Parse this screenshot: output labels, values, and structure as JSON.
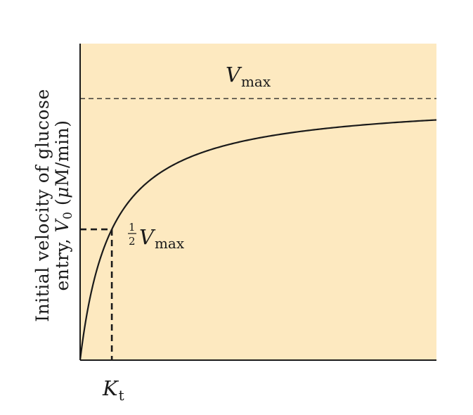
{
  "chart_data": {
    "type": "line",
    "title": "",
    "ylabel_line1": "Initial velocity of glucose",
    "ylabel_line2_prefix": "entry, ",
    "ylabel_line2_var": "V",
    "ylabel_line2_sub": "0",
    "ylabel_line2_unit_open": " (",
    "ylabel_line2_unit_mu": "μ",
    "ylabel_line2_unit_rest": "M/min)",
    "xlabel": "",
    "x_tick_var": "K",
    "x_tick_sub": "t",
    "vmax_label_var": "V",
    "vmax_label_sub": "max",
    "half_label_num": "1",
    "half_label_den": "2",
    "half_label_var": "V",
    "half_label_sub": "max",
    "vmax": 1.0,
    "kt": 1.0,
    "xlim": [
      0,
      11.24
    ],
    "ylim": [
      0,
      1.21
    ],
    "series": [
      {
        "equation": "v = Vmax * x / (Kt + x)",
        "x": [
          0,
          0.25,
          0.5,
          1,
          1.5,
          2,
          3,
          4,
          5,
          6,
          7,
          8,
          9,
          10,
          11.24
        ],
        "y": [
          0,
          0.2,
          0.333,
          0.5,
          0.6,
          0.667,
          0.75,
          0.8,
          0.833,
          0.857,
          0.875,
          0.889,
          0.9,
          0.909,
          0.918
        ]
      }
    ],
    "reference_lines": [
      {
        "kind": "horizontal",
        "y": 1.0,
        "style": "dashed",
        "label": "Vmax"
      },
      {
        "kind": "horizontal",
        "y": 0.5,
        "x_to": 1.0,
        "style": "dashed",
        "label": "1/2 Vmax"
      },
      {
        "kind": "vertical",
        "x": 1.0,
        "y_to": 0.5,
        "style": "dashed",
        "label": "Kt"
      }
    ],
    "grid": false,
    "colors": {
      "plot_background": "#fde9c0",
      "curve": "#1a1a1a",
      "axes": "#1a1a1a"
    }
  }
}
